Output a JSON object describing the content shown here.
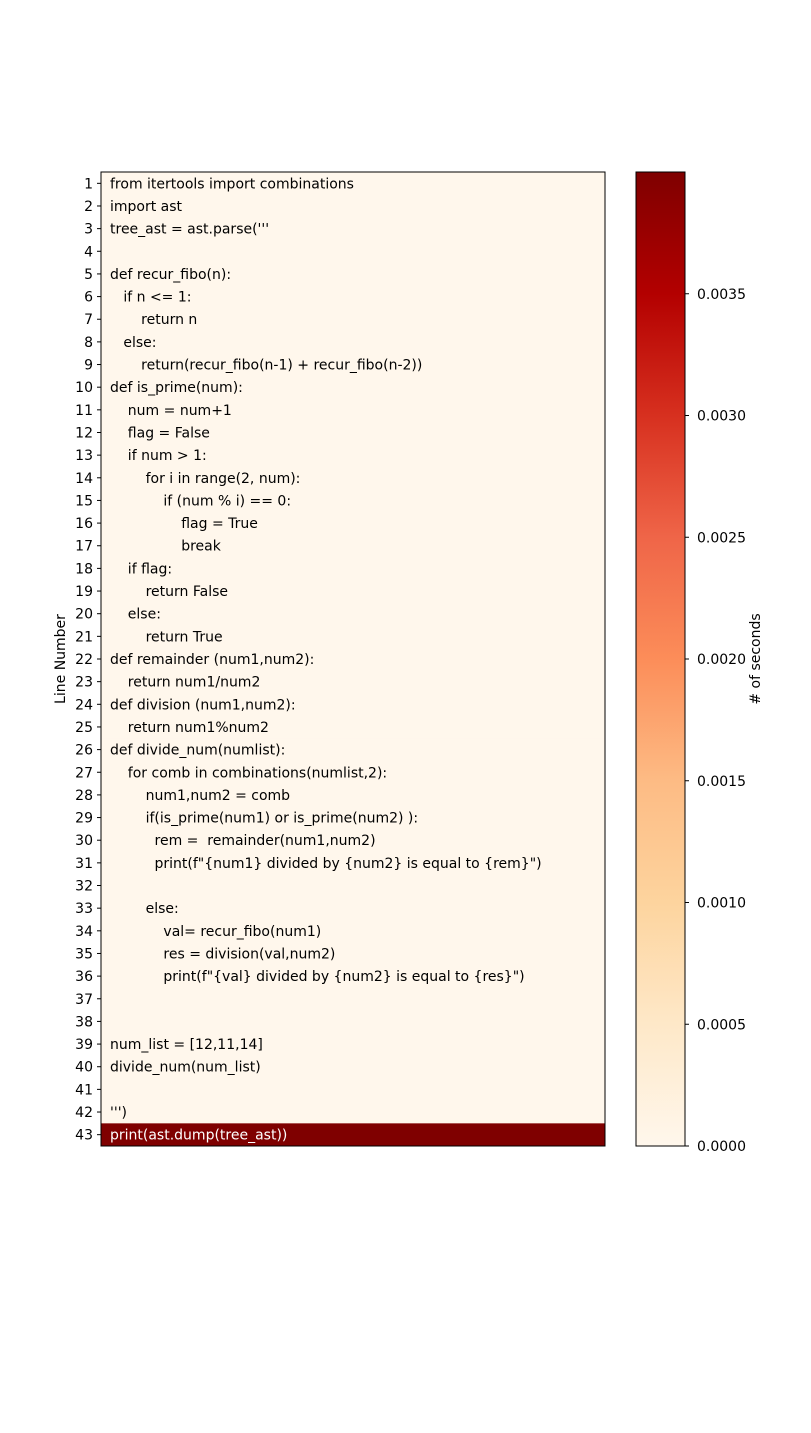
{
  "chart_data": {
    "type": "heatmap",
    "title": "",
    "ylabel": "Line Number",
    "colorbar_label": "# of seconds",
    "colormap": "OrRd",
    "colorbar_range": [
      0,
      0.004
    ],
    "colorbar_ticks": [
      "0.0000",
      "0.0005",
      "0.0010",
      "0.0015",
      "0.0020",
      "0.0025",
      "0.0030",
      "0.0035"
    ],
    "colorbar_tick_values": [
      0,
      0.0005,
      0.001,
      0.0015,
      0.002,
      0.0025,
      0.003,
      0.0035
    ],
    "lines": [
      {
        "num": "1",
        "code": "from itertools import combinations",
        "seconds": 0
      },
      {
        "num": "2",
        "code": "import ast",
        "seconds": 0
      },
      {
        "num": "3",
        "code": "tree_ast = ast.parse('''",
        "seconds": 0
      },
      {
        "num": "4",
        "code": "",
        "seconds": 0
      },
      {
        "num": "5",
        "code": "def recur_fibo(n):",
        "seconds": 0
      },
      {
        "num": "6",
        "code": "   if n <= 1:",
        "seconds": 0
      },
      {
        "num": "7",
        "code": "       return n",
        "seconds": 0
      },
      {
        "num": "8",
        "code": "   else:",
        "seconds": 0
      },
      {
        "num": "9",
        "code": "       return(recur_fibo(n-1) + recur_fibo(n-2))",
        "seconds": 0
      },
      {
        "num": "10",
        "code": "def is_prime(num):",
        "seconds": 0
      },
      {
        "num": "11",
        "code": "    num = num+1",
        "seconds": 0
      },
      {
        "num": "12",
        "code": "    flag = False",
        "seconds": 0
      },
      {
        "num": "13",
        "code": "    if num > 1:",
        "seconds": 0
      },
      {
        "num": "14",
        "code": "        for i in range(2, num):",
        "seconds": 0
      },
      {
        "num": "15",
        "code": "            if (num % i) == 0:",
        "seconds": 0
      },
      {
        "num": "16",
        "code": "                flag = True",
        "seconds": 0
      },
      {
        "num": "17",
        "code": "                break",
        "seconds": 0
      },
      {
        "num": "18",
        "code": "    if flag:",
        "seconds": 0
      },
      {
        "num": "19",
        "code": "        return False",
        "seconds": 0
      },
      {
        "num": "20",
        "code": "    else:",
        "seconds": 0
      },
      {
        "num": "21",
        "code": "        return True",
        "seconds": 0
      },
      {
        "num": "22",
        "code": "def remainder (num1,num2):",
        "seconds": 0
      },
      {
        "num": "23",
        "code": "    return num1/num2",
        "seconds": 0
      },
      {
        "num": "24",
        "code": "def division (num1,num2):",
        "seconds": 0
      },
      {
        "num": "25",
        "code": "    return num1%num2",
        "seconds": 0
      },
      {
        "num": "26",
        "code": "def divide_num(numlist):",
        "seconds": 0
      },
      {
        "num": "27",
        "code": "    for comb in combinations(numlist,2):",
        "seconds": 0
      },
      {
        "num": "28",
        "code": "        num1,num2 = comb",
        "seconds": 0
      },
      {
        "num": "29",
        "code": "        if(is_prime(num1) or is_prime(num2) ):",
        "seconds": 0
      },
      {
        "num": "30",
        "code": "          rem =  remainder(num1,num2)",
        "seconds": 0
      },
      {
        "num": "31",
        "code": "          print(f\"{num1} divided by {num2} is equal to {rem}\")",
        "seconds": 0
      },
      {
        "num": "32",
        "code": "",
        "seconds": 0
      },
      {
        "num": "33",
        "code": "        else:",
        "seconds": 0
      },
      {
        "num": "34",
        "code": "            val= recur_fibo(num1)",
        "seconds": 0
      },
      {
        "num": "35",
        "code": "            res = division(val,num2)",
        "seconds": 0
      },
      {
        "num": "36",
        "code": "            print(f\"{val} divided by {num2} is equal to {res}\")",
        "seconds": 0
      },
      {
        "num": "37",
        "code": "",
        "seconds": 0
      },
      {
        "num": "38",
        "code": "",
        "seconds": 0
      },
      {
        "num": "39",
        "code": "num_list = [12,11,14]",
        "seconds": 0
      },
      {
        "num": "40",
        "code": "divide_num(num_list)",
        "seconds": 0
      },
      {
        "num": "41",
        "code": "",
        "seconds": 0
      },
      {
        "num": "42",
        "code": "''')",
        "seconds": 0
      },
      {
        "num": "43",
        "code": "print(ast.dump(tree_ast))",
        "seconds": 0.004
      }
    ]
  }
}
